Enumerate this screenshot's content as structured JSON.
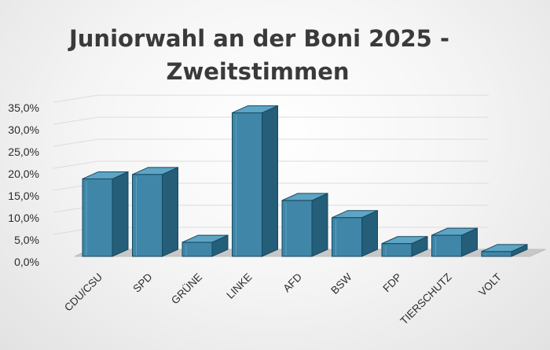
{
  "chart_data": {
    "type": "bar",
    "title_lines": [
      "Juniorwahl an der Boni 2025 -",
      "Zweitstimmen"
    ],
    "categories": [
      "CDU/CSU",
      "SPD",
      "GRÜNE",
      "LINKE",
      "AFD",
      "BSW",
      "FDP",
      "TIERSCHUTZ",
      "VOLT"
    ],
    "values": [
      17.6,
      18.6,
      3.2,
      32.6,
      12.7,
      8.8,
      2.9,
      4.8,
      1.1
    ],
    "ylim": [
      0,
      35
    ],
    "y_ticks": [
      "0,0%",
      "5,0%",
      "10,0%",
      "15,0%",
      "20,0%",
      "25,0%",
      "30,0%",
      "35,0%"
    ],
    "grid": true,
    "style": "3d-column",
    "colors": {
      "front": "#3f86a8",
      "side": "#245e78",
      "top": "#5ea5c5",
      "edge": "#17485e"
    }
  }
}
